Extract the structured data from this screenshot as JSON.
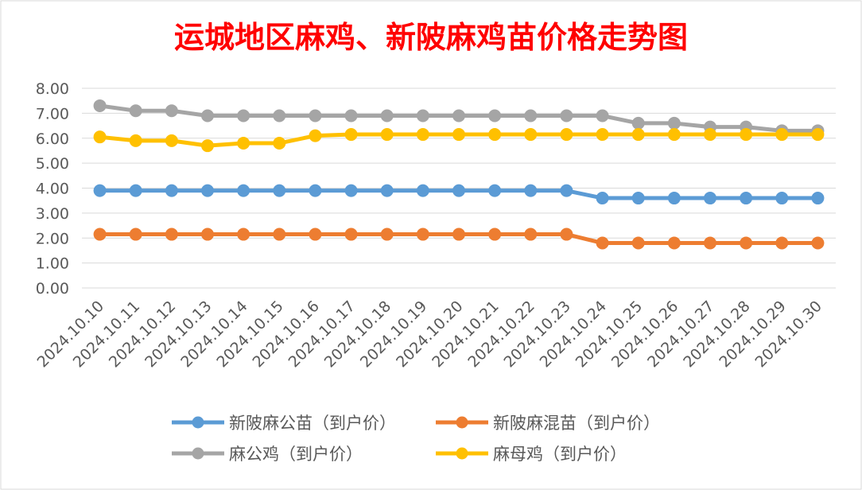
{
  "chart_data": {
    "type": "line",
    "title": "运城地区麻鸡、新陂麻鸡苗价格走势图",
    "xlabel": "",
    "ylabel": "",
    "ylim": [
      0,
      8
    ],
    "yticks": [
      "0.00",
      "1.00",
      "2.00",
      "3.00",
      "4.00",
      "5.00",
      "6.00",
      "7.00",
      "8.00"
    ],
    "grid": true,
    "legend_position": "bottom",
    "categories": [
      "2024.10.10",
      "2024.10.11",
      "2024.10.12",
      "2024.10.13",
      "2024.10.14",
      "2024.10.15",
      "2024.10.16",
      "2024.10.17",
      "2024.10.18",
      "2024.10.19",
      "2024.10.20",
      "2024.10.21",
      "2024.10.22",
      "2024.10.23",
      "2024.10.24",
      "2024.10.25",
      "2024.10.26",
      "2024.10.27",
      "2024.10.28",
      "2024.10.29",
      "2024.10.30"
    ],
    "series": [
      {
        "name": "新陂麻公苗（到户价）",
        "color": "#5b9bd5",
        "values": [
          3.9,
          3.9,
          3.9,
          3.9,
          3.9,
          3.9,
          3.9,
          3.9,
          3.9,
          3.9,
          3.9,
          3.9,
          3.9,
          3.9,
          3.6,
          3.6,
          3.6,
          3.6,
          3.6,
          3.6,
          3.6
        ]
      },
      {
        "name": "新陂麻混苗（到户价）",
        "color": "#ed7d31",
        "values": [
          2.15,
          2.15,
          2.15,
          2.15,
          2.15,
          2.15,
          2.15,
          2.15,
          2.15,
          2.15,
          2.15,
          2.15,
          2.15,
          2.15,
          1.8,
          1.8,
          1.8,
          1.8,
          1.8,
          1.8,
          1.8
        ]
      },
      {
        "name": "麻公鸡（到户价）",
        "color": "#a5a5a5",
        "values": [
          7.3,
          7.1,
          7.1,
          6.9,
          6.9,
          6.9,
          6.9,
          6.9,
          6.9,
          6.9,
          6.9,
          6.9,
          6.9,
          6.9,
          6.9,
          6.6,
          6.6,
          6.45,
          6.45,
          6.3,
          6.3
        ]
      },
      {
        "name": "麻母鸡（到户价）",
        "color": "#ffc000",
        "values": [
          6.05,
          5.9,
          5.9,
          5.7,
          5.8,
          5.8,
          6.1,
          6.15,
          6.15,
          6.15,
          6.15,
          6.15,
          6.15,
          6.15,
          6.15,
          6.15,
          6.15,
          6.15,
          6.15,
          6.15,
          6.15
        ]
      }
    ]
  }
}
